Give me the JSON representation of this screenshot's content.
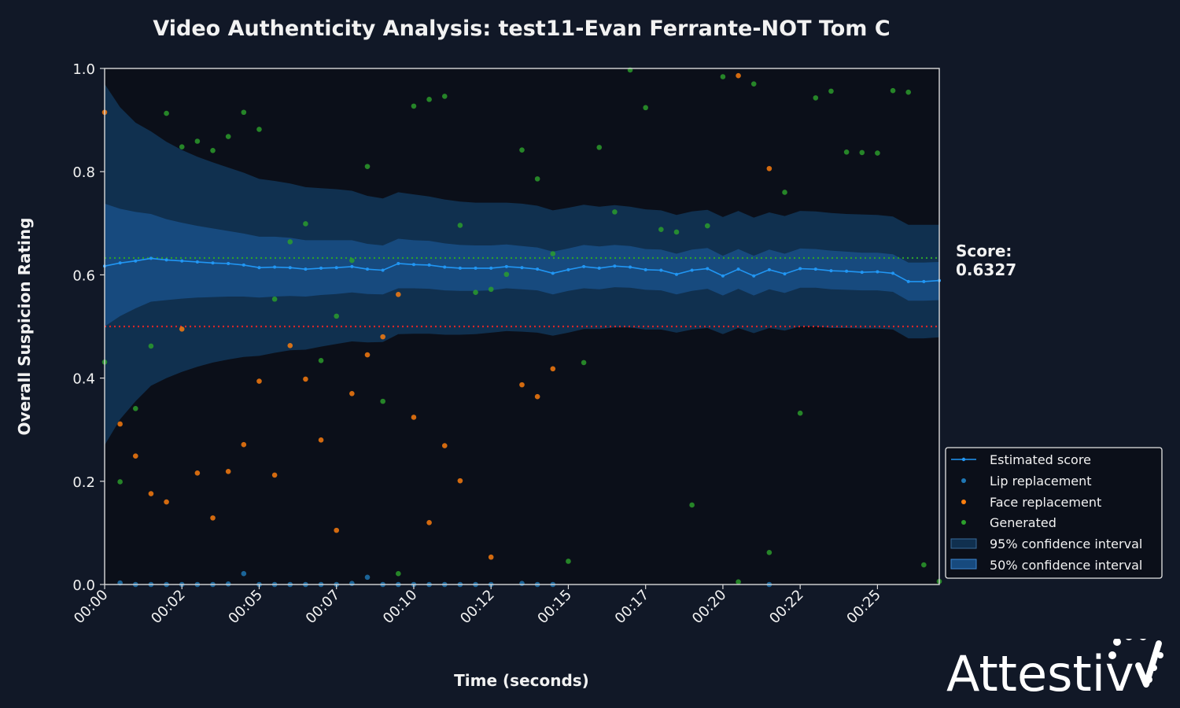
{
  "chart_data": {
    "type": "scatter",
    "title": "Video Authenticity Analysis: test11-Evan Ferrante-NOT Tom C",
    "xlabel": "Time (seconds)",
    "ylabel": "Overall Suspicion Rating",
    "xlim": [
      0,
      27
    ],
    "ylim": [
      0,
      1
    ],
    "xticks": [
      0,
      2.5,
      5,
      7.5,
      10,
      12.5,
      15,
      17.5,
      20,
      22.5,
      25
    ],
    "xtick_labels": [
      "00:00",
      "00:02",
      "00:05",
      "00:07",
      "00:10",
      "00:12",
      "00:15",
      "00:17",
      "00:20",
      "00:22",
      "00:25"
    ],
    "yticks": [
      0.0,
      0.2,
      0.4,
      0.6,
      0.8,
      1.0
    ],
    "ytick_labels": [
      "0.0",
      "0.2",
      "0.4",
      "0.6",
      "0.8",
      "1.0"
    ],
    "grid": false,
    "legend_position": "bottom-right",
    "score_label": "Score:",
    "score_value": "0.6327",
    "reference_lines": [
      {
        "y": 0.6327,
        "color": "#2ca02c",
        "style": "dotted"
      },
      {
        "y": 0.5,
        "color": "#d62728",
        "style": "dotted"
      }
    ],
    "legend": {
      "estimated": "Estimated score",
      "lip": "Lip replacement",
      "face": "Face replacement",
      "generated": "Generated",
      "ci95": "95% confidence interval",
      "ci50": "50% confidence interval"
    },
    "colors": {
      "estimated": "#2196f3",
      "lip": "#1f77b4",
      "face": "#ff7f0e",
      "generated": "#2ca02c",
      "ci95": "#10304f",
      "ci50": "#174a7e",
      "threshold": "#d62728"
    },
    "estimated_score": {
      "x": [
        0,
        0.5,
        1,
        1.5,
        2,
        2.5,
        3,
        3.5,
        4,
        4.5,
        5,
        5.5,
        6,
        6.5,
        7,
        7.5,
        8,
        8.5,
        9,
        9.5,
        10,
        10.5,
        11,
        11.5,
        12,
        12.5,
        13,
        13.5,
        14,
        14.5,
        15,
        15.5,
        16,
        16.5,
        17,
        17.5,
        18,
        18.5,
        19,
        19.5,
        20,
        20.5,
        21,
        21.5,
        22,
        22.5,
        23,
        23.5,
        24,
        24.5,
        25,
        25.5,
        26,
        26.5,
        27
      ],
      "y": [
        0.617,
        0.623,
        0.627,
        0.632,
        0.629,
        0.627,
        0.625,
        0.623,
        0.622,
        0.619,
        0.614,
        0.615,
        0.614,
        0.611,
        0.613,
        0.614,
        0.616,
        0.611,
        0.609,
        0.622,
        0.62,
        0.619,
        0.615,
        0.613,
        0.613,
        0.613,
        0.616,
        0.614,
        0.611,
        0.603,
        0.61,
        0.616,
        0.613,
        0.617,
        0.615,
        0.61,
        0.609,
        0.601,
        0.609,
        0.612,
        0.598,
        0.611,
        0.598,
        0.61,
        0.602,
        0.612,
        0.611,
        0.608,
        0.607,
        0.605,
        0.606,
        0.603,
        0.587,
        0.587,
        0.589
      ]
    },
    "ci95": {
      "x": [
        0,
        0.5,
        1,
        1.5,
        2,
        2.5,
        3,
        3.5,
        4,
        4.5,
        5,
        5.5,
        6,
        6.5,
        7,
        7.5,
        8,
        8.5,
        9,
        9.5,
        10,
        10.5,
        11,
        11.5,
        12,
        12.5,
        13,
        13.5,
        14,
        14.5,
        15,
        15.5,
        16,
        16.5,
        17,
        17.5,
        18,
        18.5,
        19,
        19.5,
        20,
        20.5,
        21,
        21.5,
        22,
        22.5,
        23,
        23.5,
        24,
        24.5,
        25,
        25.5,
        26,
        26.5,
        27
      ],
      "lower": [
        0.27,
        0.32,
        0.355,
        0.385,
        0.4,
        0.412,
        0.422,
        0.43,
        0.436,
        0.441,
        0.443,
        0.449,
        0.454,
        0.455,
        0.461,
        0.466,
        0.471,
        0.469,
        0.47,
        0.485,
        0.486,
        0.486,
        0.484,
        0.484,
        0.485,
        0.488,
        0.491,
        0.49,
        0.488,
        0.482,
        0.488,
        0.495,
        0.495,
        0.498,
        0.498,
        0.494,
        0.494,
        0.488,
        0.494,
        0.497,
        0.485,
        0.497,
        0.487,
        0.497,
        0.492,
        0.5,
        0.5,
        0.497,
        0.497,
        0.496,
        0.496,
        0.494,
        0.477,
        0.477,
        0.479
      ],
      "upper": [
        0.97,
        0.925,
        0.895,
        0.878,
        0.858,
        0.842,
        0.829,
        0.818,
        0.808,
        0.798,
        0.786,
        0.782,
        0.777,
        0.77,
        0.768,
        0.766,
        0.763,
        0.753,
        0.748,
        0.76,
        0.756,
        0.752,
        0.746,
        0.742,
        0.74,
        0.74,
        0.74,
        0.738,
        0.734,
        0.725,
        0.73,
        0.736,
        0.732,
        0.735,
        0.732,
        0.727,
        0.725,
        0.716,
        0.723,
        0.726,
        0.712,
        0.724,
        0.711,
        0.721,
        0.714,
        0.724,
        0.723,
        0.72,
        0.718,
        0.717,
        0.716,
        0.713,
        0.697,
        0.697,
        0.697
      ]
    },
    "ci50": {
      "x": [
        0,
        0.5,
        1,
        1.5,
        2,
        2.5,
        3,
        3.5,
        4,
        4.5,
        5,
        5.5,
        6,
        6.5,
        7,
        7.5,
        8,
        8.5,
        9,
        9.5,
        10,
        10.5,
        11,
        11.5,
        12,
        12.5,
        13,
        13.5,
        14,
        14.5,
        15,
        15.5,
        16,
        16.5,
        17,
        17.5,
        18,
        18.5,
        19,
        19.5,
        20,
        20.5,
        21,
        21.5,
        22,
        22.5,
        23,
        23.5,
        24,
        24.5,
        25,
        25.5,
        26,
        26.5,
        27
      ],
      "lower": [
        0.5,
        0.52,
        0.535,
        0.548,
        0.551,
        0.554,
        0.556,
        0.557,
        0.558,
        0.558,
        0.556,
        0.558,
        0.559,
        0.558,
        0.561,
        0.563,
        0.566,
        0.563,
        0.562,
        0.574,
        0.574,
        0.573,
        0.57,
        0.569,
        0.569,
        0.57,
        0.574,
        0.572,
        0.57,
        0.562,
        0.569,
        0.574,
        0.572,
        0.576,
        0.575,
        0.571,
        0.57,
        0.562,
        0.569,
        0.573,
        0.56,
        0.573,
        0.56,
        0.572,
        0.565,
        0.575,
        0.575,
        0.572,
        0.571,
        0.57,
        0.57,
        0.567,
        0.55,
        0.55,
        0.551
      ],
      "upper": [
        0.738,
        0.728,
        0.722,
        0.718,
        0.708,
        0.701,
        0.695,
        0.69,
        0.685,
        0.68,
        0.674,
        0.674,
        0.672,
        0.667,
        0.667,
        0.667,
        0.667,
        0.66,
        0.657,
        0.67,
        0.667,
        0.666,
        0.661,
        0.658,
        0.657,
        0.657,
        0.659,
        0.656,
        0.653,
        0.645,
        0.651,
        0.658,
        0.655,
        0.658,
        0.656,
        0.65,
        0.649,
        0.641,
        0.649,
        0.652,
        0.637,
        0.65,
        0.637,
        0.649,
        0.641,
        0.651,
        0.65,
        0.647,
        0.645,
        0.643,
        0.643,
        0.64,
        0.624,
        0.624,
        0.625
      ]
    },
    "lip_points": {
      "x": [
        0.5,
        1,
        1.5,
        2,
        2.5,
        3,
        3.5,
        4,
        4.5,
        5,
        5.5,
        6,
        6.5,
        7,
        7.5,
        8,
        8.5,
        9,
        9.5,
        10,
        10.5,
        11,
        11.5,
        12,
        12.5,
        13.5,
        14,
        14.5,
        21.5
      ],
      "y": [
        0.003,
        0,
        0,
        0,
        0,
        0,
        0,
        0.001,
        0.021,
        0,
        0,
        0,
        0,
        0,
        0,
        0.002,
        0.014,
        0,
        0,
        0,
        0,
        0,
        0,
        0,
        0,
        0.002,
        0,
        0,
        0
      ]
    },
    "face_points": {
      "x": [
        0,
        0.5,
        1,
        1.5,
        2,
        2.5,
        3,
        3.5,
        4,
        4.5,
        5,
        5.5,
        6,
        6.5,
        7,
        7.5,
        8,
        8.5,
        9,
        9.5,
        10,
        10.5,
        11,
        11.5,
        12.5,
        13.5,
        14,
        14.5,
        20.5,
        21.5
      ],
      "y": [
        0.915,
        0.311,
        0.249,
        0.176,
        0.16,
        0.495,
        0.216,
        0.129,
        0.219,
        0.271,
        0.394,
        0.212,
        0.463,
        0.398,
        0.28,
        0.105,
        0.37,
        0.445,
        0.48,
        0.562,
        0.324,
        0.12,
        0.269,
        0.201,
        0.053,
        0.387,
        0.364,
        0.418,
        0.986,
        0.806
      ]
    },
    "generated_points": {
      "x": [
        0,
        0.5,
        1,
        1.5,
        2,
        2.5,
        3,
        3.5,
        4,
        4.5,
        5,
        5.5,
        6,
        6.5,
        7,
        7.5,
        8,
        8.5,
        9,
        9.5,
        10,
        10.5,
        11,
        11.5,
        12,
        12.5,
        13,
        13.5,
        14,
        14.5,
        15,
        15.5,
        16,
        16.5,
        17,
        17.5,
        18,
        18.5,
        19,
        19.5,
        20,
        20.5,
        21,
        21.5,
        22,
        22.5,
        23,
        23.5,
        24,
        24.5,
        25,
        25.5,
        26,
        26.5,
        27
      ],
      "y": [
        0.431,
        0.199,
        0.341,
        0.462,
        0.913,
        0.848,
        0.859,
        0.841,
        0.868,
        0.915,
        0.882,
        0.553,
        0.664,
        0.699,
        0.434,
        0.52,
        0.628,
        0.81,
        0.355,
        0.021,
        0.927,
        0.94,
        0.946,
        0.696,
        0.566,
        0.572,
        0.601,
        0.842,
        0.786,
        0.641,
        0.045,
        0.43,
        0.847,
        0.722,
        0.997,
        0.924,
        0.688,
        0.683,
        0.154,
        0.695,
        0.984,
        0.005,
        0.97,
        0.062,
        0.76,
        0.332,
        0.943,
        0.956,
        0.838,
        0.837,
        0.836,
        0.957,
        0.954,
        0.038,
        0.006
      ]
    }
  },
  "logo": {
    "text": "Attestiv"
  }
}
